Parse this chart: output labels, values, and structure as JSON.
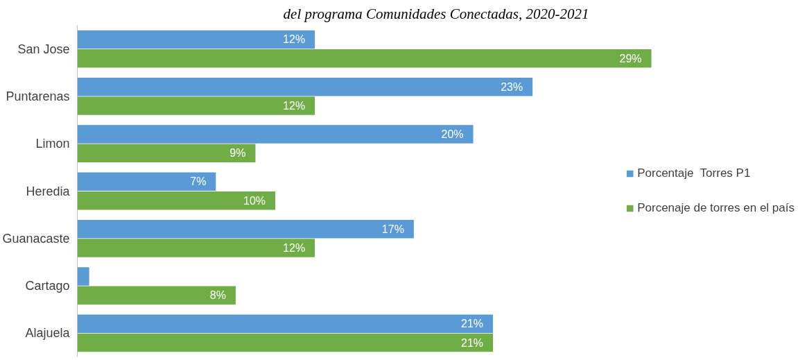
{
  "chart_data": {
    "type": "bar",
    "orientation": "horizontal",
    "title": "del programa Comunidades Conectadas, 2020-2021",
    "categories": [
      "San Jose",
      "Puntarenas",
      "Limon",
      "Heredia",
      "Guanacaste",
      "Cartago",
      "Alajuela"
    ],
    "series": [
      {
        "name": "Porcentaje  Torres P1",
        "color": "#5b9bd5",
        "values": [
          12,
          23,
          20,
          7,
          17,
          0.6,
          21
        ],
        "value_labels": [
          "12%",
          "23%",
          "20%",
          "7%",
          "17%",
          null,
          "21%"
        ]
      },
      {
        "name": "Porcenaje de torres en el país",
        "color": "#70ad47",
        "values": [
          29,
          12,
          9,
          10,
          12,
          8,
          21
        ],
        "value_labels": [
          "29%",
          "12%",
          "9%",
          "10%",
          "12%",
          "8%",
          "21%"
        ]
      }
    ],
    "legend": "right",
    "grid": false
  }
}
